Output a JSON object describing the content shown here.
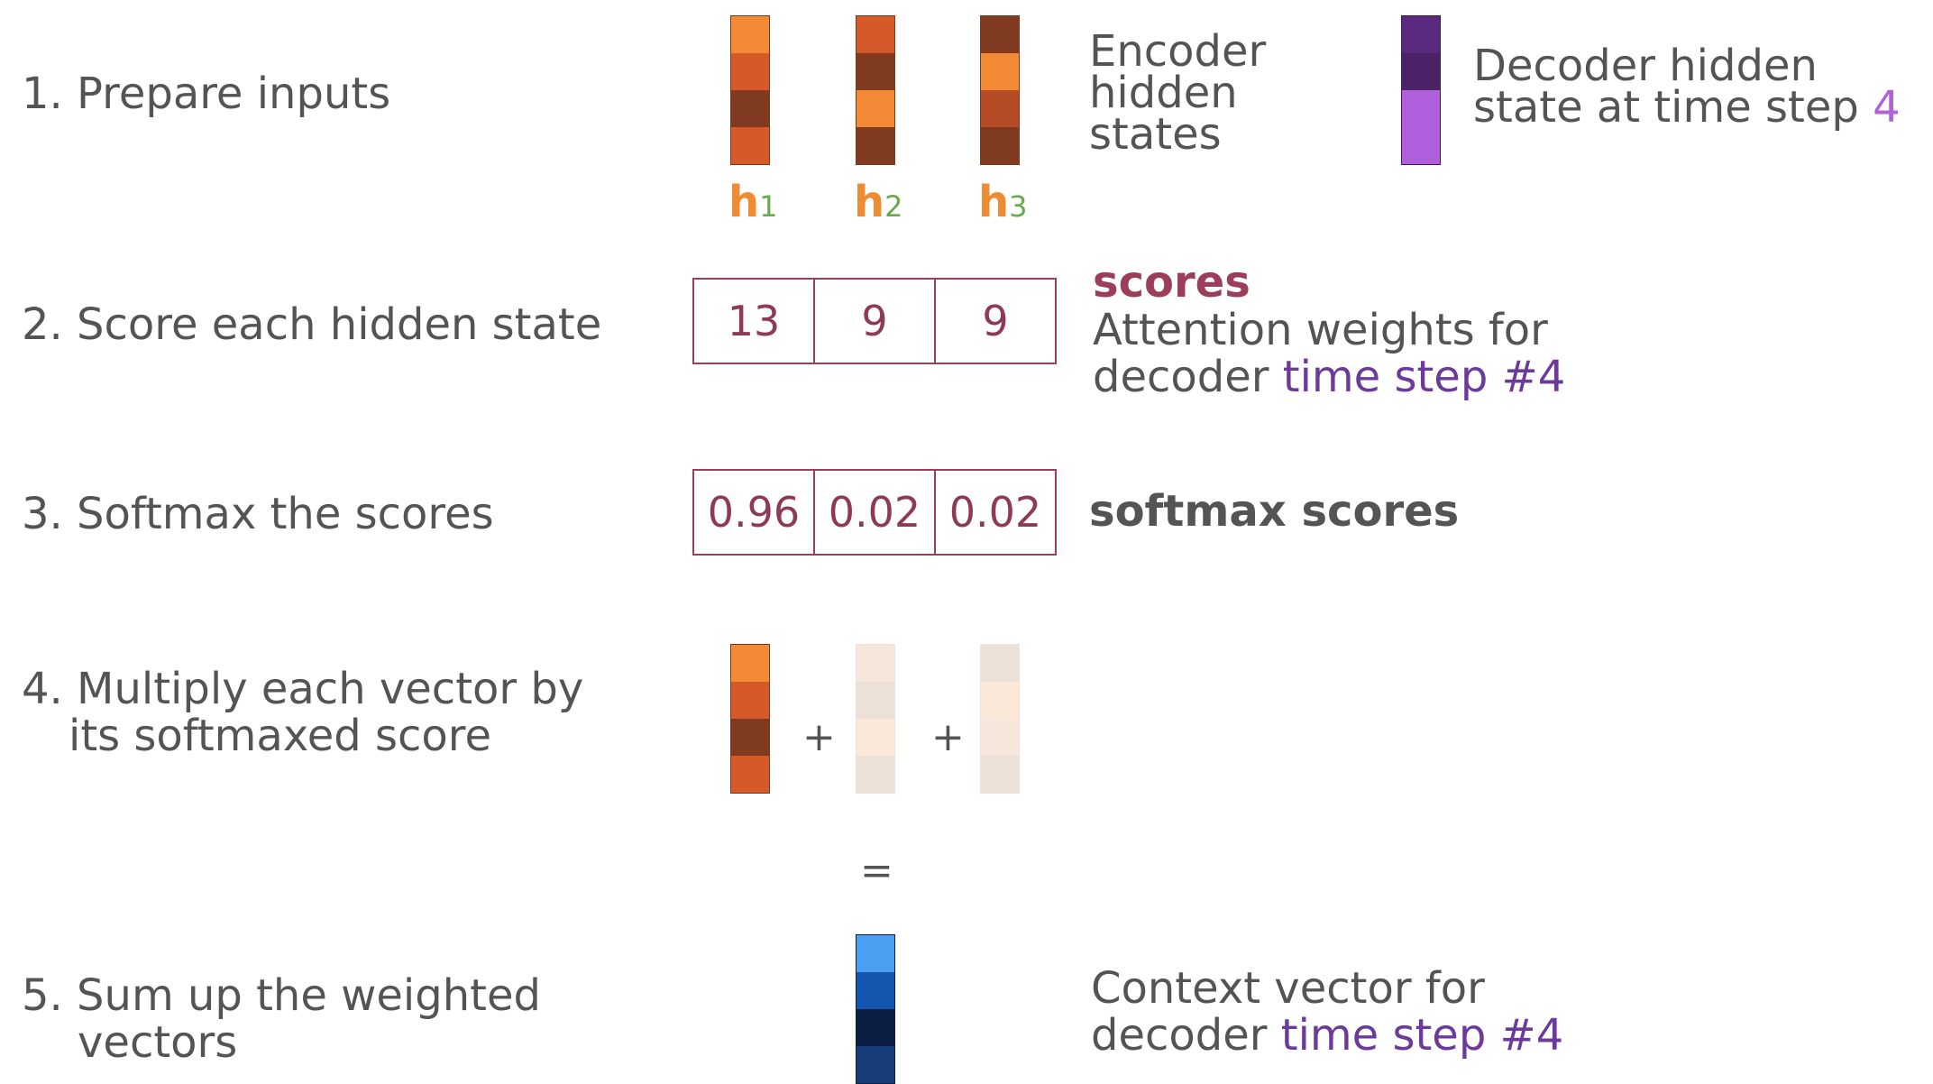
{
  "steps": {
    "s1": "1.  Prepare inputs",
    "s2": "2.  Score each hidden state",
    "s3": "3.  Softmax the scores",
    "s4_line1": "4. Multiply each vector by",
    "s4_line2": "its softmaxed score",
    "s5_line1": "5. Sum up the weighted",
    "s5_line2": "vectors"
  },
  "encoder": {
    "label_line1": "Encoder",
    "label_line2": "hidden",
    "label_line3": "states",
    "h1": "h",
    "h1_sub": "1",
    "h2": "h",
    "h2_sub": "2",
    "h3": "h",
    "h3_sub": "3"
  },
  "decoder": {
    "label_line1": "Decoder hidden",
    "label_line2_prefix": "state at time step ",
    "label_line2_step": "4"
  },
  "scores": {
    "values": [
      "13",
      "9",
      "9"
    ],
    "title": "scores",
    "desc_line1": "Attention weights for",
    "desc_line2_prefix": "decoder ",
    "desc_line2_highlight": "time step #4"
  },
  "softmax": {
    "values": [
      "0.96",
      "0.02",
      "0.02"
    ],
    "title": "softmax scores"
  },
  "operators": {
    "plus": "+",
    "equals": "="
  },
  "context": {
    "desc_line1": "Context vector for",
    "desc_line2_prefix": "decoder ",
    "desc_line2_highlight": "time step #4"
  },
  "colors": {
    "orange_light": "#f28a36",
    "orange_mid": "#d6592a",
    "orange_dark": "#7f3a1f",
    "orange_rust": "#b54c25",
    "purple_dark": "#5a2a7e",
    "purple_darker": "#4a2265",
    "purple_light": "#b05fdc",
    "blue_light": "#4a9ff0",
    "blue_mid": "#1455b0",
    "blue_dark": "#0b1f45",
    "blue_navy": "#163d78",
    "faded_1": "#f7e6dc",
    "faded_2": "#ece0d9",
    "faded_3": "#fbe8d9",
    "score_border": "#9b3e5a",
    "score_text": "#8c3a57",
    "highlight_purple": "#6b3a9a"
  }
}
